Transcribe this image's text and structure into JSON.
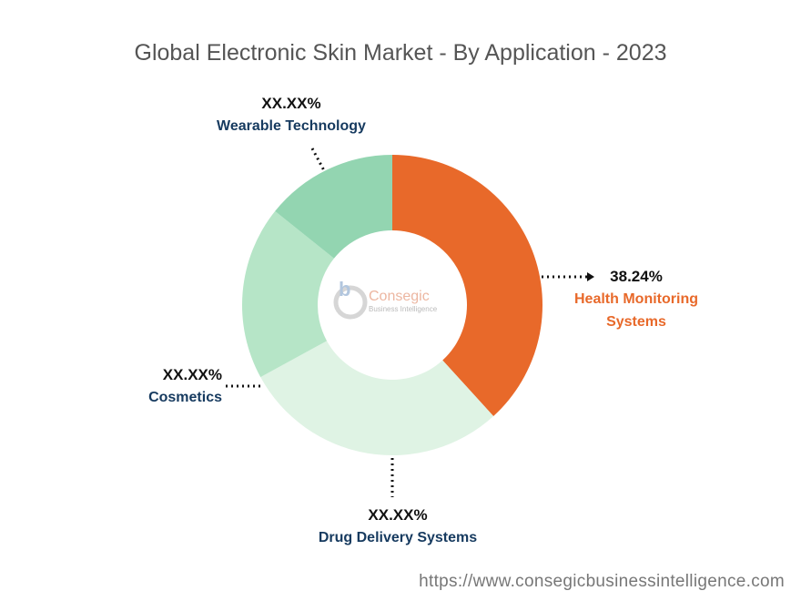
{
  "chart_data": {
    "type": "pie",
    "title": "Global Electronic Skin Market - By Application - 2023",
    "categories": [
      "Health Monitoring Systems",
      "Drug Delivery Systems",
      "Cosmetics",
      "Wearable Technology"
    ],
    "values": [
      38.24,
      28.8,
      18.7,
      14.26
    ],
    "value_labels": [
      "38.24%",
      "XX.XX%",
      "XX.XX%",
      "XX.XX%"
    ],
    "colors": [
      "#e8692a",
      "#dff3e4",
      "#b6e5c7",
      "#93d5b1"
    ],
    "label_colors": [
      "#e8692a",
      "#163a5f",
      "#163a5f",
      "#163a5f"
    ],
    "donut": true
  },
  "watermark": {
    "name": "Consegic",
    "tagline": "Business Intelligence"
  },
  "source": "https://www.consegicbusinessintelligence.com"
}
